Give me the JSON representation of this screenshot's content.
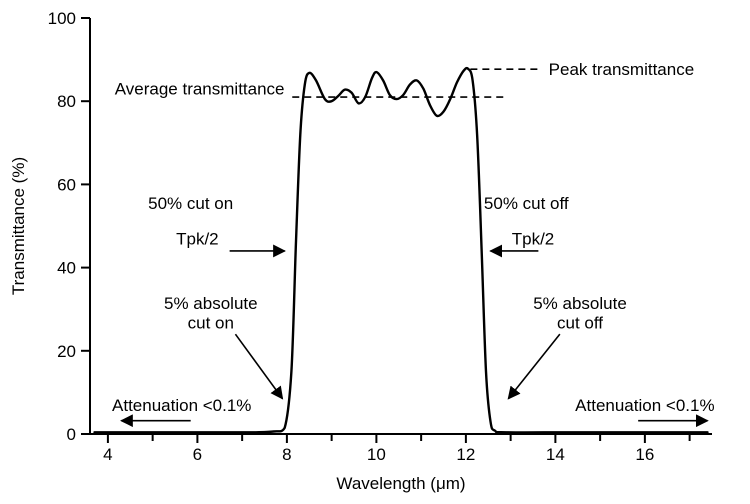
{
  "chart_data": {
    "type": "line",
    "xlabel": "Wavelength (μm)",
    "ylabel": "Transmittance (%)",
    "xlim": [
      3.6,
      17.5
    ],
    "ylim": [
      0,
      100
    ],
    "x_ticks": [
      4,
      6,
      8,
      10,
      12,
      14,
      16
    ],
    "x_minor_ticks": [
      5,
      7,
      9,
      11,
      13,
      15,
      17
    ],
    "y_ticks": [
      0,
      20,
      40,
      60,
      80,
      100
    ],
    "grid": false,
    "colors": {
      "line": "#000000",
      "text": "#000000",
      "background": "#ffffff"
    },
    "series": [
      {
        "name": "Transmittance",
        "points": [
          [
            3.7,
            0.4
          ],
          [
            6.0,
            0.4
          ],
          [
            7.2,
            0.4
          ],
          [
            7.7,
            0.6
          ],
          [
            7.95,
            1.5
          ],
          [
            8.1,
            15
          ],
          [
            8.2,
            45
          ],
          [
            8.3,
            72
          ],
          [
            8.4,
            84
          ],
          [
            8.5,
            86.8
          ],
          [
            8.65,
            85
          ],
          [
            8.85,
            80.5
          ],
          [
            9.0,
            80
          ],
          [
            9.15,
            81.3
          ],
          [
            9.3,
            82.8
          ],
          [
            9.45,
            82
          ],
          [
            9.6,
            79.5
          ],
          [
            9.75,
            81
          ],
          [
            9.9,
            85.5
          ],
          [
            10.0,
            87
          ],
          [
            10.15,
            85
          ],
          [
            10.3,
            81.5
          ],
          [
            10.45,
            80.5
          ],
          [
            10.6,
            81.5
          ],
          [
            10.75,
            84
          ],
          [
            10.9,
            85
          ],
          [
            11.05,
            83
          ],
          [
            11.2,
            79
          ],
          [
            11.35,
            76.5
          ],
          [
            11.5,
            77.5
          ],
          [
            11.65,
            80.5
          ],
          [
            11.8,
            84.5
          ],
          [
            11.95,
            87.3
          ],
          [
            12.05,
            87.8
          ],
          [
            12.15,
            85
          ],
          [
            12.25,
            72
          ],
          [
            12.35,
            45
          ],
          [
            12.45,
            15
          ],
          [
            12.55,
            3
          ],
          [
            12.65,
            0.8
          ],
          [
            12.9,
            0.4
          ],
          [
            14.5,
            0.4
          ],
          [
            17.4,
            0.4
          ]
        ]
      }
    ],
    "dashed_lines": [
      {
        "name": "average-transmittance-line",
        "y": 81,
        "x1": 8.12,
        "x2": 12.88
      },
      {
        "name": "peak-transmittance-line",
        "y": 87.7,
        "x1": 12.1,
        "x2": 13.65
      }
    ],
    "labels": [
      {
        "name": "average-transmittance-label",
        "text": "Average transmittance",
        "x": 6.05,
        "y": 83,
        "anchor": "middle"
      },
      {
        "name": "peak-transmittance-label",
        "text": "Peak transmittance",
        "x": 13.85,
        "y": 87.8,
        "anchor": "start"
      },
      {
        "name": "cut-on-50-label",
        "text": "50% cut on",
        "x": 5.85,
        "y": 55.5,
        "anchor": "middle"
      },
      {
        "name": "cut-on-tpk2-label",
        "text": "Tpk/2",
        "x": 6.0,
        "y": 47,
        "anchor": "middle"
      },
      {
        "name": "cut-off-50-label",
        "text": "50% cut off",
        "x": 13.35,
        "y": 55.5,
        "anchor": "middle"
      },
      {
        "name": "cut-off-tpk2-label",
        "text": "Tpk/2",
        "x": 13.5,
        "y": 47,
        "anchor": "middle"
      },
      {
        "name": "cut-on-5-label-line1",
        "text": "5% absolute",
        "x": 6.3,
        "y": 31.5,
        "anchor": "middle"
      },
      {
        "name": "cut-on-5-label-line2",
        "text": "cut on",
        "x": 6.3,
        "y": 26.8,
        "anchor": "middle"
      },
      {
        "name": "cut-off-5-label-line1",
        "text": "5% absolute",
        "x": 14.55,
        "y": 31.5,
        "anchor": "middle"
      },
      {
        "name": "cut-off-5-label-line2",
        "text": "cut off",
        "x": 14.55,
        "y": 26.8,
        "anchor": "middle"
      },
      {
        "name": "attenuation-left-label",
        "text": "Attenuation <0.1%",
        "x": 5.65,
        "y": 7.0,
        "anchor": "middle"
      },
      {
        "name": "attenuation-right-label",
        "text": "Attenuation <0.1%",
        "x": 16.0,
        "y": 7.0,
        "anchor": "middle"
      }
    ],
    "arrows": [
      {
        "name": "cut-on-50-arrow",
        "from": [
          6.72,
          44
        ],
        "to": [
          7.95,
          44
        ]
      },
      {
        "name": "cut-off-50-arrow",
        "from": [
          13.62,
          44
        ],
        "to": [
          12.55,
          44
        ]
      },
      {
        "name": "cut-on-5-arrow",
        "from": [
          6.85,
          24
        ],
        "to": [
          7.9,
          8.5
        ]
      },
      {
        "name": "cut-off-5-arrow",
        "from": [
          14.1,
          24
        ],
        "to": [
          12.95,
          8.5
        ]
      },
      {
        "name": "attenuation-left-arrow",
        "from": [
          5.85,
          3.2
        ],
        "to": [
          4.3,
          3.2
        ]
      },
      {
        "name": "attenuation-right-arrow",
        "from": [
          15.85,
          3.2
        ],
        "to": [
          17.4,
          3.2
        ]
      }
    ]
  }
}
